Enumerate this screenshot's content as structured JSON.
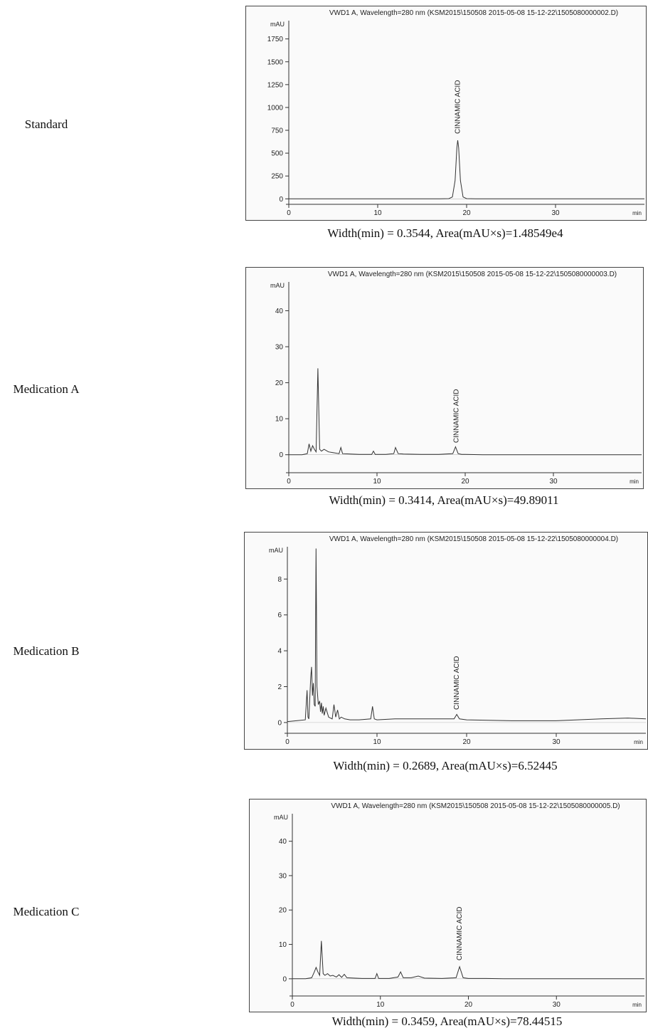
{
  "figure": {
    "panels": [
      {
        "label": "Standard",
        "caption": "Width(min) = 0.3544, Area(mAU×s)=1.48549e4",
        "chart_data": {
          "type": "line",
          "title": "VWD1 A, Wavelength=280 nm (KSM2015\\150508 2015-05-08 15-12-22\\1505080000002.D)",
          "xlabel": "min",
          "ylabel": "mAU",
          "xlim": [
            0,
            40
          ],
          "ylim": [
            -60,
            1950
          ],
          "xticks": [
            0,
            10,
            20,
            30
          ],
          "yticks": [
            0,
            250,
            500,
            750,
            1000,
            1250,
            1500,
            1750
          ],
          "annotation": {
            "text": "CINNAMIC ACID",
            "x": 19.0,
            "y": 680
          },
          "series": [
            {
              "x": [
                0,
                2,
                4,
                6,
                8,
                10,
                12,
                14,
                16,
                17,
                18,
                18.4,
                18.7,
                18.9,
                19.0,
                19.1,
                19.3,
                19.6,
                20,
                21,
                22,
                24,
                26,
                28,
                30,
                32,
                34,
                36,
                38,
                40
              ],
              "values": [
                0,
                0,
                0,
                0,
                0,
                0,
                0,
                0,
                0,
                0,
                2,
                20,
                200,
                560,
                640,
                560,
                200,
                20,
                2,
                0,
                0,
                0,
                0,
                0,
                0,
                0,
                0,
                0,
                0,
                0
              ]
            }
          ]
        }
      },
      {
        "label": "Medication A",
        "caption": "Width(min) = 0.3414, Area(mAU×s)=49.89011",
        "chart_data": {
          "type": "line",
          "title": "VWD1 A, Wavelength=280 nm (KSM2015\\150508 2015-05-08 15-12-22\\1505080000003.D)",
          "xlabel": "min",
          "ylabel": "mAU",
          "xlim": [
            0,
            40
          ],
          "ylim": [
            -5,
            48
          ],
          "xticks": [
            0,
            10,
            20,
            30
          ],
          "yticks": [
            0,
            10,
            20,
            30,
            40
          ],
          "annotation": {
            "text": "CINNAMIC ACID",
            "x": 19.0,
            "y": 2.5
          },
          "series": [
            {
              "x": [
                0,
                1.5,
                2.1,
                2.3,
                2.5,
                2.7,
                2.9,
                3.1,
                3.3,
                3.5,
                3.7,
                4.0,
                4.5,
                5.0,
                5.7,
                5.9,
                6.1,
                7,
                8,
                9.4,
                9.6,
                9.8,
                11,
                11.9,
                12.1,
                12.4,
                13,
                15,
                17,
                18.6,
                18.9,
                19.2,
                19.6,
                20,
                22,
                24,
                26,
                28,
                30,
                32,
                34,
                36,
                38,
                40
              ],
              "values": [
                0,
                0,
                0.3,
                3,
                1,
                2.5,
                1.5,
                0.8,
                24,
                1.5,
                1,
                1.5,
                0.8,
                0.6,
                0.3,
                2,
                0.3,
                0.2,
                0.1,
                0.1,
                1,
                0.1,
                0.1,
                0.3,
                2,
                0.3,
                0.2,
                0.1,
                0.1,
                0.3,
                2.2,
                0.3,
                0.1,
                0.1,
                0,
                0,
                0,
                0,
                0,
                0,
                0,
                0,
                0,
                0
              ]
            }
          ]
        }
      },
      {
        "label": "Medication B",
        "caption": "Width(min) = 0.2689, Area(mAU×s)=6.52445",
        "chart_data": {
          "type": "line",
          "title": "VWD1 A, Wavelength=280 nm (KSM2015\\150508 2015-05-08 15-12-22\\1505080000004.D)",
          "xlabel": "min",
          "ylabel": "mAU",
          "xlim": [
            0,
            40
          ],
          "ylim": [
            -0.6,
            9.8
          ],
          "xticks": [
            0,
            10,
            20,
            30
          ],
          "yticks": [
            0,
            2,
            4,
            6,
            8
          ],
          "annotation": {
            "text": "CINNAMIC ACID",
            "x": 18.9,
            "y": 0.55
          },
          "series": [
            {
              "x": [
                -0.5,
                1,
                2.0,
                2.2,
                2.3,
                2.4,
                2.6,
                2.7,
                2.8,
                2.9,
                3.0,
                3.1,
                3.2,
                3.3,
                3.45,
                3.6,
                3.7,
                3.8,
                3.9,
                4.0,
                4.1,
                4.3,
                4.6,
                5.0,
                5.2,
                5.4,
                5.6,
                5.8,
                6.0,
                6.4,
                7,
                8,
                9.3,
                9.5,
                9.7,
                10,
                12,
                14,
                16,
                18.6,
                18.9,
                19.2,
                20,
                25,
                30,
                35,
                38,
                40
              ],
              "values": [
                0.05,
                0.1,
                0.15,
                1.8,
                0.3,
                0.2,
                2.5,
                3.1,
                1.5,
                2.2,
                1.0,
                0.9,
                9.7,
                2.0,
                1.0,
                1.2,
                0.6,
                1.1,
                0.5,
                0.9,
                0.4,
                0.8,
                0.3,
                0.2,
                1.0,
                0.3,
                0.7,
                0.2,
                0.3,
                0.2,
                0.15,
                0.15,
                0.2,
                0.9,
                0.2,
                0.15,
                0.2,
                0.2,
                0.2,
                0.2,
                0.45,
                0.2,
                0.15,
                0.1,
                0.1,
                0.2,
                0.25,
                0.2
              ]
            }
          ]
        }
      },
      {
        "label": "Medication C",
        "caption": "Width(min) = 0.3459, Area(mAU×s)=78.44515",
        "chart_data": {
          "type": "line",
          "title": "VWD1 A, Wavelength=280 nm (KSM2015\\150508 2015-05-08 15-12-22\\1505080000005.D)",
          "xlabel": "min",
          "ylabel": "mAU",
          "xlim": [
            0,
            40
          ],
          "ylim": [
            -5,
            48
          ],
          "xticks": [
            0,
            10,
            20,
            30
          ],
          "yticks": [
            0,
            10,
            20,
            30,
            40
          ],
          "annotation": {
            "text": "CINNAMIC ACID",
            "x": 19.0,
            "y": 4.5
          },
          "series": [
            {
              "x": [
                0,
                1.5,
                2.2,
                2.5,
                2.7,
                2.9,
                3.1,
                3.3,
                3.5,
                3.7,
                4.0,
                4.3,
                4.6,
                5.0,
                5.3,
                5.6,
                5.9,
                6.2,
                7,
                8,
                9.4,
                9.6,
                9.8,
                11,
                12.0,
                12.3,
                12.6,
                13.5,
                14.3,
                15,
                17,
                18.6,
                19.0,
                19.4,
                20,
                22,
                24,
                26,
                28,
                30,
                32,
                34,
                36,
                38,
                40
              ],
              "values": [
                0,
                0,
                0.3,
                2,
                3.3,
                2,
                1,
                11,
                1.5,
                1,
                1.5,
                0.8,
                1,
                0.5,
                1.2,
                0.4,
                1.3,
                0.3,
                0.2,
                0.1,
                0.1,
                1.5,
                0.1,
                0.1,
                0.5,
                2,
                0.3,
                0.3,
                0.8,
                0.2,
                0.1,
                0.3,
                3.5,
                0.3,
                0.1,
                0.1,
                0,
                0,
                0,
                0,
                0,
                0,
                0,
                0,
                0
              ]
            }
          ]
        }
      }
    ]
  }
}
